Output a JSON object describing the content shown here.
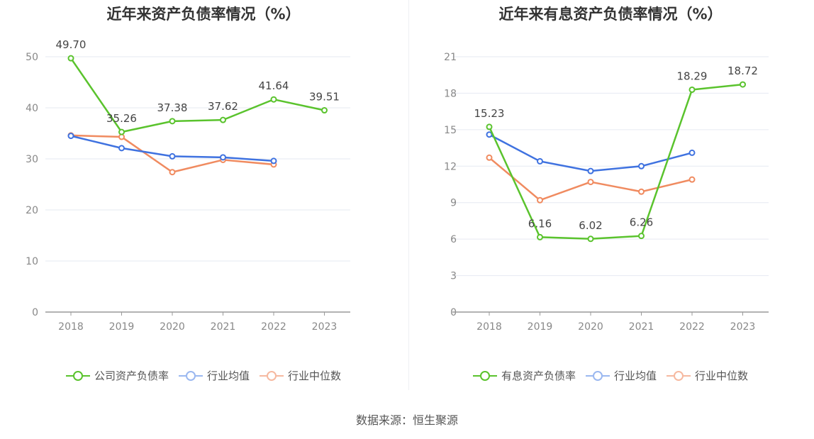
{
  "charts": [
    {
      "title": "近年来资产负债率情况（%）",
      "chart_data": {
        "type": "line",
        "categories": [
          "2018",
          "2019",
          "2020",
          "2021",
          "2022",
          "2023"
        ],
        "ylim": [
          0,
          50
        ],
        "yticks": [
          "0",
          "10",
          "20",
          "30",
          "40",
          "50"
        ],
        "series": [
          {
            "name": "公司资产负债率",
            "color": "#5ac32d",
            "values": [
              49.7,
              35.26,
              37.38,
              37.62,
              41.64,
              39.51
            ],
            "labels": [
              "49.70",
              "35.26",
              "37.38",
              "37.62",
              "41.64",
              "39.51"
            ]
          },
          {
            "name": "行业均值",
            "color": "#3f72e0",
            "values": [
              34.5,
              32.1,
              30.5,
              30.3,
              29.6,
              null
            ]
          },
          {
            "name": "行业中位数",
            "color": "#f08b60",
            "values": [
              34.6,
              34.3,
              27.4,
              29.8,
              28.9,
              null
            ]
          }
        ]
      }
    },
    {
      "title": "近年来有息资产负债率情况（%）",
      "chart_data": {
        "type": "line",
        "categories": [
          "2018",
          "2019",
          "2020",
          "2021",
          "2022",
          "2023"
        ],
        "ylim": [
          0,
          21
        ],
        "yticks": [
          "0",
          "3",
          "6",
          "9",
          "12",
          "15",
          "18",
          "21"
        ],
        "series": [
          {
            "name": "有息资产负债率",
            "color": "#5ac32d",
            "values": [
              15.23,
              6.16,
              6.02,
              6.26,
              18.29,
              18.72
            ],
            "labels": [
              "15.23",
              "6.16",
              "6.02",
              "6.26",
              "18.29",
              "18.72"
            ]
          },
          {
            "name": "行业均值",
            "color": "#3f72e0",
            "values": [
              14.6,
              12.4,
              11.6,
              12.0,
              13.1,
              null
            ]
          },
          {
            "name": "行业中位数",
            "color": "#f08b60",
            "values": [
              12.7,
              9.2,
              10.7,
              9.9,
              10.9,
              null
            ]
          }
        ]
      }
    }
  ],
  "legend_colors": {
    "company": "#5ac32d",
    "avg": "#9bb8f0",
    "median": "#f6b9a0"
  },
  "source": "数据来源：恒生聚源"
}
